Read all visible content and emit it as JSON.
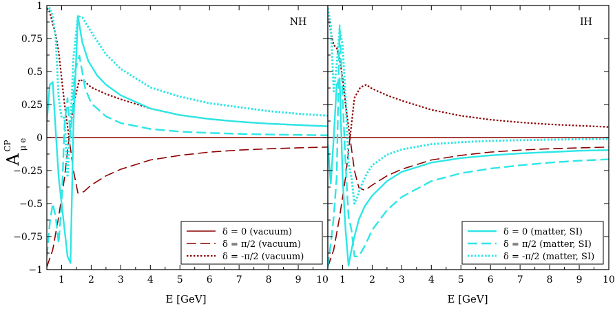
{
  "colors": {
    "vacuum": "#8b0000",
    "matter": "#2ee6e6",
    "axis": "#000000"
  },
  "ylabel": {
    "main": "A",
    "sup": "CP",
    "sub": "μ e"
  },
  "chart_data": [
    {
      "type": "line",
      "panel_tag": "NH",
      "xlabel": "E [GeV]",
      "xlim": [
        0.5,
        10
      ],
      "ylim": [
        -1,
        1
      ],
      "xticks": [
        1,
        2,
        3,
        4,
        5,
        6,
        7,
        8,
        9,
        10
      ],
      "yticks": [
        -1,
        -0.75,
        -0.5,
        -0.25,
        0,
        0.25,
        0.5,
        0.75,
        1
      ],
      "xtick_labels": [
        "1",
        "2",
        "3",
        "4",
        "5",
        "6",
        "7",
        "8",
        "9",
        "10"
      ],
      "ytick_labels": [
        "−1",
        "−0.75",
        "−0.5",
        "−0.25",
        "0",
        "0.25",
        "0.5",
        "0.75",
        "1"
      ],
      "zero_line": true,
      "legend": {
        "placement": "bottom-right",
        "entries": [
          {
            "label": "δ = 0 (vacuum)",
            "style": "solid",
            "color": "#8b0000"
          },
          {
            "label": "δ = π/2 (vacuum)",
            "style": "dashed",
            "color": "#8b0000"
          },
          {
            "label": "δ = -π/2 (vacuum)",
            "style": "dotted",
            "color": "#8b0000"
          }
        ]
      },
      "series": [
        {
          "name": "δ = π/2 (vacuum)",
          "style": "dashed",
          "color": "#8b0000",
          "x": [
            0.5,
            0.7,
            0.9,
            1.1,
            1.25,
            1.4,
            1.55,
            1.75,
            2,
            2.5,
            3,
            4,
            5,
            6,
            7,
            8,
            9,
            10
          ],
          "y": [
            -0.98,
            -0.85,
            -0.6,
            -0.3,
            0.0,
            -0.25,
            -0.42,
            -0.41,
            -0.36,
            -0.29,
            -0.24,
            -0.17,
            -0.135,
            -0.11,
            -0.095,
            -0.085,
            -0.078,
            -0.072
          ]
        },
        {
          "name": "δ = -π/2 (vacuum)",
          "style": "dotted",
          "color": "#8b0000",
          "x": [
            0.5,
            0.6,
            0.7,
            0.8,
            0.9,
            1.0,
            1.1,
            1.25,
            1.4,
            1.6,
            1.8,
            2,
            2.5,
            3,
            4,
            5,
            6,
            7,
            8,
            9,
            10
          ],
          "y": [
            0.98,
            0.95,
            0.86,
            0.78,
            0.65,
            0.45,
            0.25,
            0.0,
            0.25,
            0.44,
            0.42,
            0.38,
            0.33,
            0.29,
            0.22,
            0.17,
            0.14,
            0.12,
            0.105,
            0.095,
            0.085
          ]
        },
        {
          "name": "δ = 0 (matter, SI)",
          "style": "solid",
          "color": "#2ee6e6",
          "x": [
            0.5,
            0.6,
            0.7,
            0.8,
            0.9,
            1.0,
            1.1,
            1.2,
            1.3,
            1.4,
            1.55,
            1.7,
            1.9,
            2.2,
            2.5,
            3,
            4,
            5,
            6,
            7,
            8,
            9,
            10
          ],
          "y": [
            0.12,
            0.4,
            0.42,
            0.05,
            -0.3,
            -0.5,
            -0.7,
            -0.9,
            -0.95,
            0.1,
            0.92,
            0.72,
            0.58,
            0.47,
            0.4,
            0.32,
            0.22,
            0.17,
            0.14,
            0.12,
            0.105,
            0.095,
            0.085
          ]
        },
        {
          "name": "δ = π/2 (matter, SI)",
          "style": "dashed",
          "color": "#2ee6e6",
          "x": [
            0.5,
            0.6,
            0.7,
            0.8,
            0.9,
            1.0,
            1.1,
            1.2,
            1.3,
            1.45,
            1.6,
            1.8,
            2,
            2.5,
            3,
            4,
            5,
            6,
            7,
            8,
            9,
            10
          ],
          "y": [
            -0.9,
            -0.65,
            -0.5,
            -0.6,
            -0.8,
            -0.5,
            0.1,
            0.3,
            0.0,
            0.5,
            0.62,
            0.37,
            0.26,
            0.16,
            0.11,
            0.065,
            0.045,
            0.035,
            0.028,
            0.023,
            0.02,
            0.017
          ]
        },
        {
          "name": "δ = -π/2 (matter, SI)",
          "style": "dotted",
          "color": "#2ee6e6",
          "x": [
            0.5,
            0.6,
            0.7,
            0.8,
            0.9,
            1.0,
            1.1,
            1.2,
            1.3,
            1.4,
            1.55,
            1.7,
            2,
            2.5,
            3,
            4,
            5,
            6,
            7,
            8,
            9,
            10
          ],
          "y": [
            0.95,
            0.98,
            0.92,
            0.75,
            0.3,
            0.15,
            0.15,
            -0.3,
            0.1,
            0.6,
            0.92,
            0.91,
            0.8,
            0.63,
            0.52,
            0.38,
            0.31,
            0.26,
            0.23,
            0.2,
            0.18,
            0.165
          ]
        }
      ]
    },
    {
      "type": "line",
      "panel_tag": "IH",
      "xlabel": "E [GeV]",
      "xlim": [
        0.5,
        10
      ],
      "ylim": [
        -1,
        1
      ],
      "xticks": [
        1,
        2,
        3,
        4,
        5,
        6,
        7,
        8,
        9,
        10
      ],
      "yticks": [
        -1,
        -0.75,
        -0.5,
        -0.25,
        0,
        0.25,
        0.5,
        0.75,
        1
      ],
      "xtick_labels": [
        "1",
        "2",
        "3",
        "4",
        "5",
        "6",
        "7",
        "8",
        "9",
        "10"
      ],
      "ytick_labels": [],
      "zero_line": true,
      "legend": {
        "placement": "bottom-right",
        "entries": [
          {
            "label": "δ = 0 (matter, SI)",
            "style": "solid",
            "color": "#2ee6e6"
          },
          {
            "label": "δ = π/2 (matter, SI)",
            "style": "dashed",
            "color": "#2ee6e6"
          },
          {
            "label": "δ = -π/2 (matter, SI)",
            "style": "dotted",
            "color": "#2ee6e6"
          }
        ]
      },
      "series": [
        {
          "name": "δ = π/2 (vacuum)",
          "style": "dashed",
          "color": "#8b0000",
          "x": [
            0.5,
            0.7,
            0.9,
            1.1,
            1.25,
            1.4,
            1.55,
            1.75,
            2,
            2.5,
            3,
            4,
            5,
            6,
            7,
            8,
            9,
            10
          ],
          "y": [
            -0.98,
            -0.85,
            -0.6,
            -0.3,
            0.0,
            -0.25,
            -0.38,
            -0.4,
            -0.36,
            -0.29,
            -0.24,
            -0.17,
            -0.135,
            -0.11,
            -0.095,
            -0.085,
            -0.078,
            -0.072
          ]
        },
        {
          "name": "δ = -π/2 (vacuum)",
          "style": "dotted",
          "color": "#8b0000",
          "x": [
            0.5,
            0.6,
            0.7,
            0.8,
            0.9,
            1.0,
            1.1,
            1.25,
            1.4,
            1.6,
            1.8,
            2,
            2.5,
            3,
            4,
            5,
            6,
            7,
            8,
            9,
            10
          ],
          "y": [
            0.98,
            0.8,
            0.7,
            0.68,
            0.6,
            0.45,
            0.25,
            0.0,
            0.3,
            0.38,
            0.4,
            0.37,
            0.32,
            0.28,
            0.21,
            0.165,
            0.135,
            0.115,
            0.1,
            0.09,
            0.08
          ]
        },
        {
          "name": "δ = 0 (matter, SI)",
          "style": "solid",
          "color": "#2ee6e6",
          "x": [
            0.5,
            0.6,
            0.7,
            0.8,
            0.9,
            1.0,
            1.1,
            1.2,
            1.3,
            1.4,
            1.55,
            1.75,
            2,
            2.5,
            3,
            4,
            5,
            6,
            7,
            8,
            9,
            10
          ],
          "y": [
            -0.05,
            -0.35,
            0.0,
            0.4,
            0.45,
            -0.3,
            -0.7,
            -0.97,
            -0.85,
            -0.75,
            -0.62,
            -0.52,
            -0.44,
            -0.33,
            -0.26,
            -0.19,
            -0.155,
            -0.135,
            -0.12,
            -0.11,
            -0.1,
            -0.095
          ]
        },
        {
          "name": "δ = π/2 (matter, SI)",
          "style": "dashed",
          "color": "#2ee6e6",
          "x": [
            0.5,
            0.6,
            0.7,
            0.8,
            0.9,
            1.0,
            1.1,
            1.2,
            1.3,
            1.4,
            1.55,
            1.75,
            2,
            2.5,
            3,
            4,
            5,
            6,
            7,
            8,
            9,
            10
          ],
          "y": [
            -0.98,
            -0.8,
            -0.6,
            -0.3,
            0.85,
            0.3,
            -0.2,
            -0.6,
            -0.7,
            -0.9,
            -0.9,
            -0.82,
            -0.7,
            -0.55,
            -0.45,
            -0.33,
            -0.27,
            -0.235,
            -0.21,
            -0.19,
            -0.175,
            -0.165
          ]
        },
        {
          "name": "δ = -π/2 (matter, SI)",
          "style": "dotted",
          "color": "#2ee6e6",
          "x": [
            0.5,
            0.6,
            0.7,
            0.8,
            0.9,
            1.0,
            1.1,
            1.2,
            1.3,
            1.4,
            1.5,
            1.6,
            1.8,
            2,
            2.5,
            3,
            4,
            5,
            6,
            7,
            8,
            9,
            10
          ],
          "y": [
            0.98,
            0.85,
            0.35,
            0.55,
            0.82,
            0.7,
            0.3,
            -0.2,
            -0.3,
            -0.5,
            -0.45,
            -0.38,
            -0.28,
            -0.21,
            -0.13,
            -0.09,
            -0.05,
            -0.035,
            -0.025,
            -0.02,
            -0.016,
            -0.013,
            -0.011
          ]
        }
      ]
    }
  ]
}
